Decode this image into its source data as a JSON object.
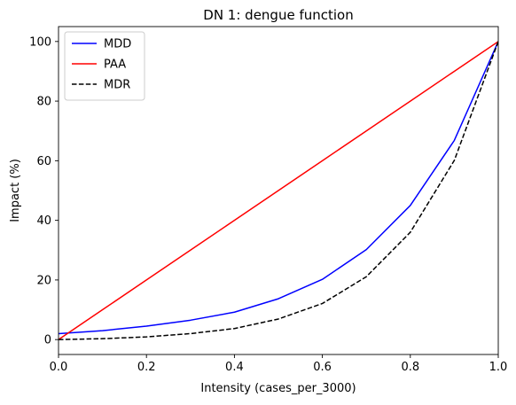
{
  "chart_data": {
    "type": "line",
    "title": "DN 1: dengue function",
    "xlabel": "Intensity (cases_per_3000)",
    "ylabel": "Impact (%)",
    "xlim": [
      0,
      1
    ],
    "ylim": [
      -5,
      105
    ],
    "xticks": [
      0.0,
      0.2,
      0.4,
      0.6,
      0.8,
      1.0
    ],
    "xtick_labels": [
      "0.0",
      "0.2",
      "0.4",
      "0.6",
      "0.8",
      "1.0"
    ],
    "yticks": [
      0,
      20,
      40,
      60,
      80,
      100
    ],
    "ytick_labels": [
      "0",
      "20",
      "40",
      "60",
      "80",
      "100"
    ],
    "grid": false,
    "legend_position": "top-left",
    "x": [
      0.0,
      0.1,
      0.2,
      0.3,
      0.4,
      0.5,
      0.6,
      0.7,
      0.8,
      0.9,
      1.0
    ],
    "series": [
      {
        "name": "MDD",
        "color": "#0000ff",
        "dash": "solid",
        "values": [
          2.0,
          3.0,
          4.5,
          6.5,
          9.2,
          13.7,
          20.2,
          30.2,
          45.0,
          66.8,
          100.0
        ]
      },
      {
        "name": "PAA",
        "color": "#ff0000",
        "dash": "solid",
        "values": [
          0,
          10,
          20,
          30,
          40,
          50,
          60,
          70,
          80,
          90,
          100
        ]
      },
      {
        "name": "MDR",
        "color": "#000000",
        "dash": "dashed",
        "values": [
          0.0,
          0.3,
          0.9,
          2.0,
          3.7,
          6.9,
          12.1,
          21.1,
          36.0,
          60.1,
          100.0
        ]
      }
    ]
  }
}
